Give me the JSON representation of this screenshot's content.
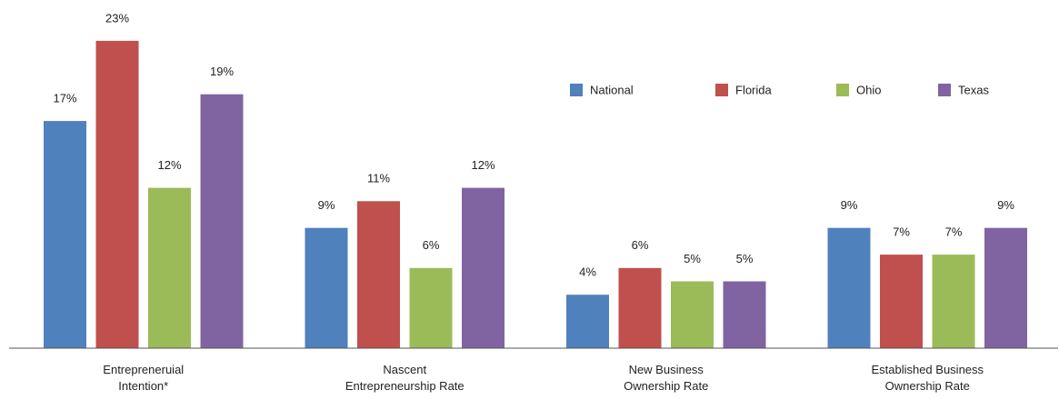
{
  "chart_data": {
    "type": "bar",
    "categories": [
      "Entrepreneruial\nIntention*",
      "Nascent\nEntrepreneurship Rate",
      "New Business\nOwnership Rate",
      "Established Business\nOwnership Rate"
    ],
    "series": [
      {
        "name": "National",
        "color": "#4f81bd",
        "values": [
          17,
          9,
          4,
          9
        ],
        "value_labels": [
          "17%",
          "9%",
          "4%",
          "9%"
        ]
      },
      {
        "name": "Florida",
        "color": "#c0504d",
        "values": [
          23,
          11,
          6,
          7
        ],
        "value_labels": [
          "23%",
          "11%",
          "6%",
          "7%"
        ]
      },
      {
        "name": "Ohio",
        "color": "#9bbb59",
        "values": [
          12,
          6,
          5,
          7
        ],
        "value_labels": [
          "12%",
          "6%",
          "5%",
          "7%"
        ]
      },
      {
        "name": "Texas",
        "color": "#8064a2",
        "values": [
          19,
          12,
          5,
          9
        ],
        "value_labels": [
          "19%",
          "12%",
          "5%",
          "9%"
        ]
      }
    ],
    "ylim": [
      0,
      25
    ],
    "legend": "top-right"
  }
}
